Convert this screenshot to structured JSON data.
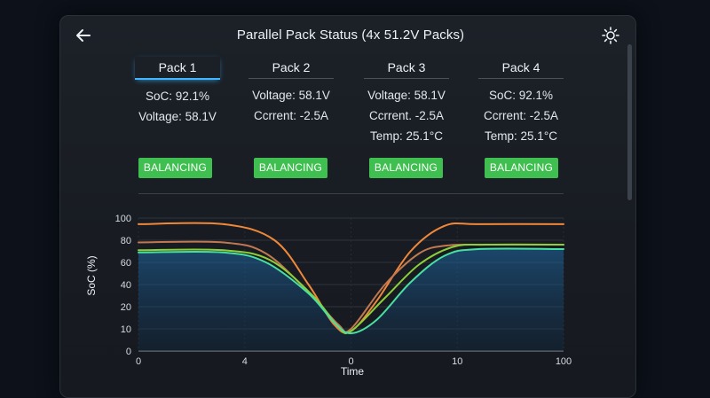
{
  "header": {
    "title": "Parallel Pack Status (4x 51.2V Packs)",
    "back_icon": "back-arrow-icon",
    "settings_icon": "brightness-icon"
  },
  "packs": [
    {
      "label": "Pack 1",
      "lines": [
        "SoC: 92.1%",
        "Voltage: 58.1V"
      ],
      "status": "BALANCING",
      "active": true
    },
    {
      "label": "Pack 2",
      "lines": [
        "Voltage: 58.1V",
        "Ccrrent: -2.5A"
      ],
      "status": "BALANCING",
      "active": false
    },
    {
      "label": "Pack 3",
      "lines": [
        "Voltage: 58.1V",
        "Ccrrent. -2.5A",
        "Temp: 25.1°C"
      ],
      "status": "BALANCING",
      "active": false
    },
    {
      "label": "Pack 4",
      "lines": [
        "SoC: 92.1%",
        "Ccrrent: -2.5A",
        "Temp: 25.1°C"
      ],
      "status": "BALANCING",
      "active": false
    }
  ],
  "colors": {
    "accent": "#3fb6ff",
    "badge": "#3fbf4f"
  },
  "chart_data": {
    "type": "line",
    "xlabel": "Time",
    "ylabel": "SoC (%)",
    "ylim": [
      0,
      100
    ],
    "yticks": [
      0,
      10,
      20,
      40,
      60,
      80,
      100
    ],
    "xticks": [
      "0",
      "4",
      "0",
      "10",
      "100"
    ],
    "grid": true,
    "series": [
      {
        "color": "#f0883a",
        "points": [
          [
            0,
            94.5
          ],
          [
            20,
            94.5
          ],
          [
            32,
            80
          ],
          [
            40,
            40
          ],
          [
            46,
            12
          ],
          [
            50,
            9
          ],
          [
            56,
            25
          ],
          [
            64,
            70
          ],
          [
            72,
            93
          ],
          [
            80,
            94.5
          ],
          [
            100,
            94.5
          ]
        ]
      },
      {
        "color": "#c07850",
        "points": [
          [
            0,
            78
          ],
          [
            20,
            78
          ],
          [
            30,
            68
          ],
          [
            40,
            33
          ],
          [
            47,
            12
          ],
          [
            50,
            10
          ],
          [
            58,
            40
          ],
          [
            66,
            68
          ],
          [
            72,
            75
          ],
          [
            80,
            76
          ],
          [
            100,
            76
          ]
        ]
      },
      {
        "color": "#8ccf38",
        "points": [
          [
            0,
            71
          ],
          [
            20,
            71
          ],
          [
            31,
            62
          ],
          [
            41,
            30
          ],
          [
            47,
            11
          ],
          [
            50,
            9
          ],
          [
            58,
            28
          ],
          [
            66,
            58
          ],
          [
            74,
            74
          ],
          [
            82,
            76
          ],
          [
            100,
            76
          ]
        ]
      },
      {
        "color": "#48e0a0",
        "points": [
          [
            0,
            69
          ],
          [
            20,
            69
          ],
          [
            30,
            60
          ],
          [
            40,
            32
          ],
          [
            46,
            13
          ],
          [
            50,
            8
          ],
          [
            56,
            14
          ],
          [
            64,
            42
          ],
          [
            72,
            66
          ],
          [
            80,
            72
          ],
          [
            100,
            72
          ]
        ]
      }
    ]
  }
}
